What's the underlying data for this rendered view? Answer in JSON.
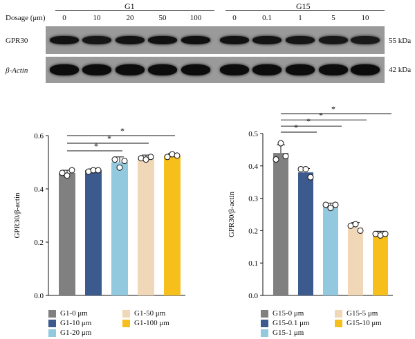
{
  "blot": {
    "dosage_label": "Dosage (μm)",
    "groups": [
      {
        "name": "G1",
        "doses": [
          "0",
          "10",
          "20",
          "50",
          "100"
        ]
      },
      {
        "name": "G15",
        "doses": [
          "0",
          "0.1",
          "1",
          "5",
          "10"
        ]
      }
    ],
    "rows": [
      {
        "name": "GPR30",
        "kda": "55 kDa",
        "intensities": [
          0.75,
          0.6,
          0.7,
          0.78,
          0.8,
          0.72,
          0.7,
          0.62,
          0.55,
          0.5
        ]
      },
      {
        "name": "β-Actin",
        "kda": "42 kDa",
        "intensities": [
          0.95,
          0.95,
          0.95,
          0.95,
          0.95,
          0.95,
          0.95,
          0.95,
          0.95,
          0.97
        ]
      }
    ]
  },
  "chart_data": [
    {
      "type": "bar",
      "ylabel": "GPR30/β-actin",
      "ylim": [
        0,
        0.6
      ],
      "yticks": [
        "0.0",
        "0.2",
        "0.4",
        "0.6"
      ],
      "categories": [
        "G1-0 μm",
        "G1-10 μm",
        "G1-20 μm",
        "G1-50 μm",
        "G1-100 μm"
      ],
      "values": [
        0.46,
        0.47,
        0.5,
        0.515,
        0.525
      ],
      "errors": [
        0.01,
        0.005,
        0.02,
        0.012,
        0.008
      ],
      "points": [
        [
          0.46,
          0.45,
          0.47
        ],
        [
          0.465,
          0.47,
          0.47
        ],
        [
          0.51,
          0.48,
          0.505
        ],
        [
          0.515,
          0.51,
          0.52
        ],
        [
          0.52,
          0.53,
          0.525
        ]
      ],
      "colors": [
        "#808080",
        "#3d5a8f",
        "#93c9df",
        "#f0d7b8",
        "#f6bf1b"
      ],
      "significance": [
        {
          "from": 0,
          "to": 2,
          "label": "*"
        },
        {
          "from": 0,
          "to": 3,
          "label": "*"
        },
        {
          "from": 0,
          "to": 4,
          "label": "*"
        }
      ],
      "legend": {
        "layout": "three-rows-two-columns"
      }
    },
    {
      "type": "bar",
      "ylabel": "GPR30/β-actin",
      "ylim": [
        0,
        0.5
      ],
      "yticks": [
        "0.0",
        "0.1",
        "0.2",
        "0.3",
        "0.4",
        "0.5"
      ],
      "categories": [
        "G15-0 μm",
        "G15-0.1 μm",
        "G15-1 μm",
        "G15-5 μm",
        "G15-10 μm"
      ],
      "values": [
        0.44,
        0.38,
        0.275,
        0.21,
        0.19
      ],
      "errors": [
        0.025,
        0.012,
        0.01,
        0.015,
        0.008
      ],
      "points": [
        [
          0.42,
          0.47,
          0.43
        ],
        [
          0.39,
          0.39,
          0.365
        ],
        [
          0.28,
          0.27,
          0.28
        ],
        [
          0.215,
          0.22,
          0.2
        ],
        [
          0.19,
          0.185,
          0.19
        ]
      ],
      "colors": [
        "#808080",
        "#3d5a8f",
        "#93c9df",
        "#f0d7b8",
        "#f6bf1b"
      ],
      "significance": [
        {
          "from": 0,
          "to": 1,
          "label": "*"
        },
        {
          "from": 0,
          "to": 2,
          "label": "*"
        },
        {
          "from": 0,
          "to": 3,
          "label": "*"
        },
        {
          "from": 0,
          "to": 4,
          "label": "*"
        }
      ],
      "legend": {
        "layout": "three-rows-two-columns"
      }
    }
  ]
}
